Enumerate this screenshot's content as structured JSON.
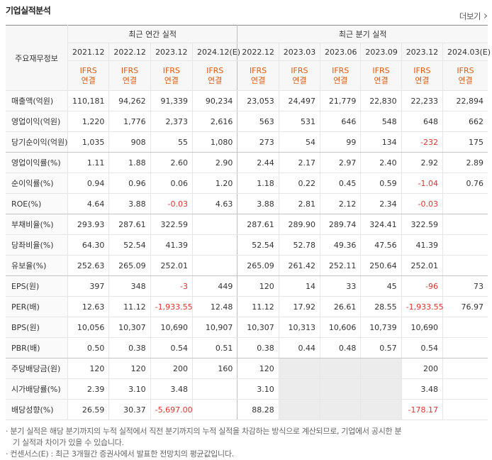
{
  "header": {
    "title": "기업실적분석",
    "more": "더보기"
  },
  "table": {
    "corner": "주요재무정보",
    "groups": [
      "최근 연간 실적",
      "최근 분기 실적"
    ],
    "periods": [
      "2021.12",
      "2022.12",
      "2023.12",
      "2024.12(E)",
      "2022.12",
      "2023.03",
      "2023.06",
      "2023.09",
      "2023.12",
      "2024.03(E)"
    ],
    "standards": [
      {
        "line1": "IFRS",
        "line2": "연결"
      },
      {
        "line1": "IFRS",
        "line2": "연결"
      },
      {
        "line1": "IFRS",
        "line2": "연결"
      },
      {
        "line1": "IFRS",
        "line2": "연결"
      },
      {
        "line1": "IFRS",
        "line2": "연결"
      },
      {
        "line1": "IFRS",
        "line2": "연결"
      },
      {
        "line1": "IFRS",
        "line2": "연결"
      },
      {
        "line1": "IFRS",
        "line2": "연결"
      },
      {
        "line1": "IFRS",
        "line2": "연결"
      },
      {
        "line1": "IFRS",
        "line2": "연결"
      }
    ],
    "rows": [
      {
        "label": "매출액(억원)",
        "values": [
          "110,181",
          "94,262",
          "91,339",
          "90,234",
          "23,053",
          "24,497",
          "21,779",
          "22,830",
          "22,233",
          "22,894"
        ]
      },
      {
        "label": "영업이익(억원)",
        "values": [
          "1,220",
          "1,776",
          "2,373",
          "2,616",
          "563",
          "531",
          "646",
          "548",
          "648",
          "662"
        ]
      },
      {
        "label": "당기순이익(억원)",
        "values": [
          "1,035",
          "908",
          "55",
          "1,080",
          "273",
          "54",
          "99",
          "134",
          "-232",
          "175"
        ]
      },
      {
        "label": "영업이익률(%)",
        "values": [
          "1.11",
          "1.88",
          "2.60",
          "2.90",
          "2.44",
          "2.17",
          "2.97",
          "2.40",
          "2.92",
          "2.89"
        ]
      },
      {
        "label": "순이익률(%)",
        "values": [
          "0.94",
          "0.96",
          "0.06",
          "1.20",
          "1.18",
          "0.22",
          "0.45",
          "0.59",
          "-1.04",
          "0.76"
        ]
      },
      {
        "label": "ROE(%)",
        "values": [
          "4.64",
          "3.88",
          "-0.03",
          "4.63",
          "3.88",
          "2.81",
          "2.12",
          "2.34",
          "-0.03",
          null
        ]
      },
      {
        "label": "부채비율(%)",
        "values": [
          "293.93",
          "287.61",
          "322.59",
          null,
          "287.61",
          "289.90",
          "289.74",
          "324.41",
          "322.59",
          null
        ]
      },
      {
        "label": "당좌비율(%)",
        "values": [
          "64.30",
          "52.54",
          "41.39",
          null,
          "52.54",
          "52.78",
          "49.36",
          "47.56",
          "41.39",
          null
        ]
      },
      {
        "label": "유보율(%)",
        "values": [
          "252.63",
          "265.09",
          "252.01",
          null,
          "265.09",
          "261.42",
          "252.11",
          "250.64",
          "252.01",
          null
        ]
      },
      {
        "label": "EPS(원)",
        "values": [
          "397",
          "348",
          "-3",
          "449",
          "120",
          "14",
          "33",
          "45",
          "-96",
          "73"
        ]
      },
      {
        "label": "PER(배)",
        "values": [
          "12.63",
          "11.12",
          "-1,933.55",
          "12.48",
          "11.12",
          "17.92",
          "26.61",
          "28.55",
          "-1,933.55",
          "76.97"
        ]
      },
      {
        "label": "BPS(원)",
        "values": [
          "10,056",
          "10,307",
          "10,690",
          "10,907",
          "10,307",
          "10,313",
          "10,606",
          "10,739",
          "10,690",
          null
        ]
      },
      {
        "label": "PBR(배)",
        "values": [
          "0.50",
          "0.38",
          "0.54",
          "0.51",
          "0.38",
          "0.44",
          "0.48",
          "0.57",
          "0.54",
          null
        ]
      },
      {
        "label": "주당배당금(원)",
        "values": [
          "120",
          "120",
          "200",
          "160",
          "120",
          null,
          null,
          null,
          "200",
          null
        ]
      },
      {
        "label": "시가배당률(%)",
        "values": [
          "2.39",
          "3.10",
          "3.48",
          null,
          "3.10",
          null,
          null,
          null,
          "3.48",
          null
        ]
      },
      {
        "label": "배당성향(%)",
        "values": [
          "26.59",
          "30.37",
          "-5,697.00",
          null,
          "88.28",
          null,
          null,
          null,
          "-178.17",
          null
        ]
      }
    ]
  },
  "notes": [
    "· 분기 실적은 해당 분기까지의 누적 실적에서 직전 분기까지의 누적 실적을 차감하는 방식으로 계산되므로, 기업에서 공시한 분기 실적과 차이가 있을 수 있습니다.",
    "· 컨센서스(E) : 최근 3개월간 증권사에서 발표한 전망치의 평균값입니다."
  ]
}
